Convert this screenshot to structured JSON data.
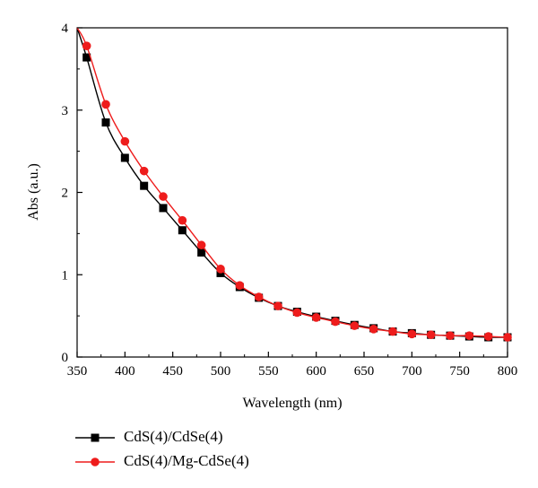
{
  "chart_data": {
    "type": "line",
    "title": "",
    "xlabel": "Wavelength (nm)",
    "ylabel": "Abs (a.u.)",
    "xlim": [
      350,
      800
    ],
    "ylim": [
      0,
      4
    ],
    "xticks": [
      350,
      400,
      450,
      500,
      550,
      600,
      650,
      700,
      750,
      800
    ],
    "yticks": [
      0,
      1,
      2,
      3,
      4
    ],
    "grid": false,
    "legend_position": "bottom",
    "series": [
      {
        "name": "CdS(4)/CdSe(4)",
        "color": "#000000",
        "marker": "square",
        "curve_start": [
          350,
          4.0
        ],
        "x": [
          360,
          380,
          400,
          420,
          440,
          460,
          480,
          500,
          520,
          540,
          560,
          580,
          600,
          620,
          640,
          660,
          680,
          700,
          720,
          740,
          760,
          780,
          800
        ],
        "y": [
          3.64,
          2.85,
          2.42,
          2.08,
          1.81,
          1.54,
          1.27,
          1.02,
          0.85,
          0.72,
          0.62,
          0.55,
          0.49,
          0.44,
          0.39,
          0.35,
          0.31,
          0.29,
          0.27,
          0.26,
          0.25,
          0.24,
          0.24
        ]
      },
      {
        "name": "CdS(4)/Mg-CdSe(4)",
        "color": "#ee1c1c",
        "marker": "circle",
        "curve_start": [
          350,
          4.0
        ],
        "x": [
          360,
          380,
          400,
          420,
          440,
          460,
          480,
          500,
          520,
          540,
          560,
          580,
          600,
          620,
          640,
          660,
          680,
          700,
          720,
          740,
          760,
          780,
          800
        ],
        "y": [
          3.78,
          3.07,
          2.62,
          2.26,
          1.95,
          1.66,
          1.36,
          1.07,
          0.87,
          0.73,
          0.62,
          0.54,
          0.48,
          0.43,
          0.38,
          0.34,
          0.31,
          0.28,
          0.27,
          0.26,
          0.26,
          0.25,
          0.24
        ]
      }
    ]
  }
}
